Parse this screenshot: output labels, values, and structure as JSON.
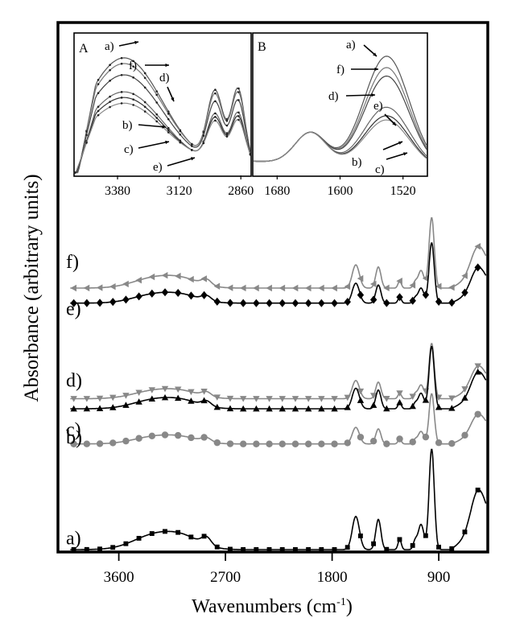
{
  "chart_data": {
    "type": "line",
    "title": "",
    "xlabel": "Wavenumbers (cm",
    "xlabel_sup": "-1",
    "xlabel_tail": ")",
    "ylabel": "Absorbance (arbitrary units)",
    "xlim": [
      4100,
      500
    ],
    "x_reversed": true,
    "xticks": [
      3600,
      2700,
      1800,
      900
    ],
    "xtick_labels": [
      "3600",
      "2700",
      "1800",
      "900"
    ],
    "legend": "letter labels at left of each trace",
    "series": [
      {
        "name": "a)",
        "label": "a)",
        "offset": 0,
        "scale": 1.0,
        "marker": "square",
        "color": "#000000",
        "label_offset": 0.02
      },
      {
        "name": "b)",
        "label": "b)",
        "offset": 0.9,
        "scale": 0.42,
        "marker": "none",
        "color": "#000000",
        "label_offset": 0.12,
        "hidden": true
      },
      {
        "name": "c)",
        "label": "c)",
        "offset": 1.05,
        "scale": 0.5,
        "marker": "circle",
        "color": "#888888",
        "label_offset": 0.05
      },
      {
        "name": "d)",
        "label": "d)",
        "offset": 1.5,
        "scale": 0.55,
        "marker": "triangle-down",
        "color": "#888888",
        "label_offset": 0.09
      },
      {
        "name": "d-black",
        "label": "",
        "offset": 1.4,
        "scale": 0.62,
        "marker": "triangle-up",
        "color": "#000000",
        "label_offset": 0
      },
      {
        "name": "e)",
        "label": "e)",
        "offset": 2.3,
        "scale": 0.7,
        "marker": "none",
        "color": "#000000",
        "label_offset": 0.0,
        "hidden": true
      },
      {
        "name": "f)",
        "label": "f)",
        "offset": 2.6,
        "scale": 0.7,
        "marker": "triangle-left",
        "color": "#888888",
        "label_offset": 0.17
      },
      {
        "name": "f-black",
        "label": "",
        "offset": 2.45,
        "scale": 0.6,
        "marker": "diamond",
        "color": "#000000",
        "label_offset": 0
      }
    ],
    "band_centers": [
      {
        "x": 3300,
        "height": 0.14,
        "width": 180
      },
      {
        "x": 3050,
        "height": 0.1,
        "width": 150
      },
      {
        "x": 2860,
        "height": 0.08,
        "width": 40
      },
      {
        "x": 1600,
        "height": 0.33,
        "width": 30
      },
      {
        "x": 1410,
        "height": 0.3,
        "width": 22
      },
      {
        "x": 1230,
        "height": 0.1,
        "width": 14
      },
      {
        "x": 1100,
        "height": 0.08,
        "width": 16
      },
      {
        "x": 960,
        "height": 1.0,
        "width": 22
      },
      {
        "x": 1050,
        "height": 0.25,
        "width": 24
      },
      {
        "x": 570,
        "height": 0.4,
        "width": 60
      }
    ],
    "insets": [
      {
        "id": "A",
        "label": "A",
        "xlim": [
          3560,
          2820
        ],
        "xticks": [
          3380,
          3120,
          2860
        ],
        "xtick_labels": [
          "3380",
          "3120",
          "2860"
        ],
        "curve_labels": [
          "a)",
          "f)",
          "d)",
          "b)",
          "c)",
          "e)"
        ]
      },
      {
        "id": "B",
        "label": "B",
        "xlim": [
          1710,
          1490
        ],
        "xticks": [
          1680,
          1600,
          1520
        ],
        "xtick_labels": [
          "1680",
          "1600",
          "1520"
        ],
        "curve_labels": [
          "a)",
          "f)",
          "d)",
          "e)",
          "b)",
          "c)"
        ]
      }
    ]
  }
}
